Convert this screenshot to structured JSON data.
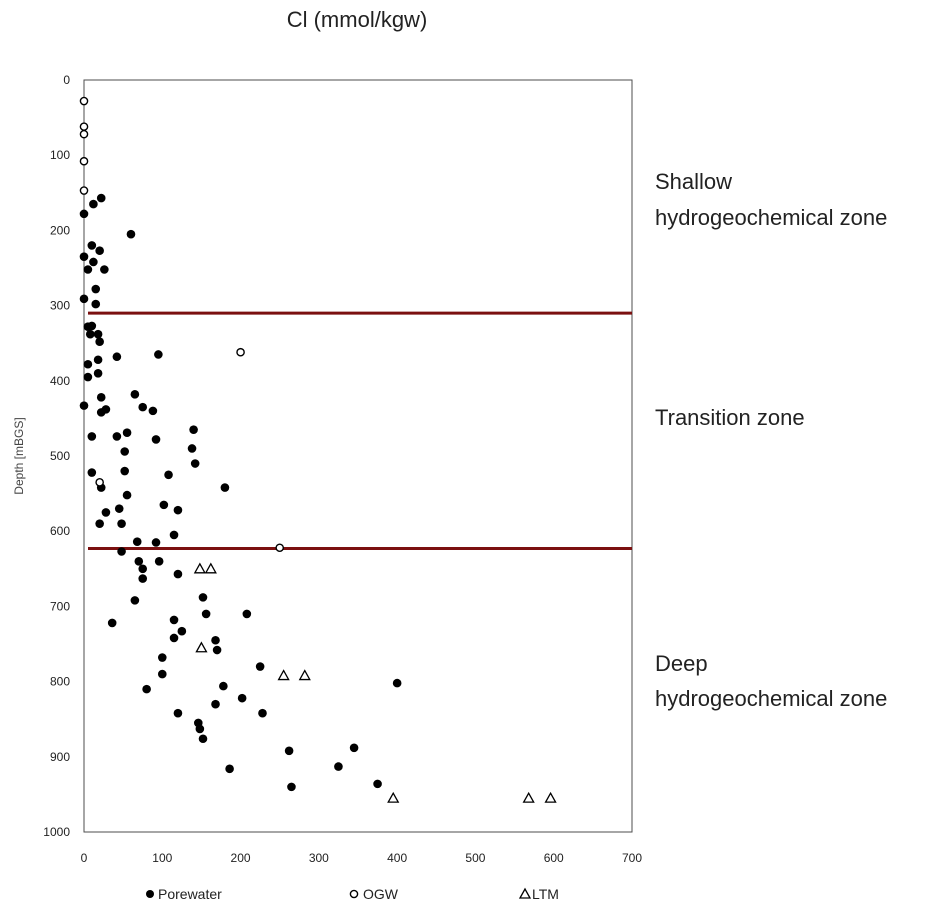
{
  "chart_data": {
    "type": "scatter",
    "title": "Cl (mmol/kgw)",
    "xlabel": "",
    "ylabel": "Depth [mBGS]",
    "xlim": [
      0,
      700
    ],
    "ylim": [
      0,
      1000
    ],
    "y_inverted": true,
    "x_ticks": [
      "0",
      "100",
      "200",
      "300",
      "400",
      "500",
      "600",
      "700"
    ],
    "y_ticks": [
      "0",
      "100",
      "200",
      "300",
      "400",
      "500",
      "600",
      "700",
      "800",
      "900",
      "1000"
    ],
    "grid": false,
    "legend_position": "bottom",
    "series": [
      {
        "name": "Porewater",
        "marker": "filled-circle",
        "color": "#000000",
        "points": [
          [
            0,
            178
          ],
          [
            12,
            165
          ],
          [
            22,
            157
          ],
          [
            60,
            205
          ],
          [
            10,
            220
          ],
          [
            20,
            227
          ],
          [
            0,
            235
          ],
          [
            12,
            242
          ],
          [
            5,
            252
          ],
          [
            26,
            252
          ],
          [
            15,
            278
          ],
          [
            0,
            291
          ],
          [
            15,
            298
          ],
          [
            5,
            328
          ],
          [
            10,
            327
          ],
          [
            18,
            338
          ],
          [
            8,
            338
          ],
          [
            20,
            348
          ],
          [
            42,
            368
          ],
          [
            95,
            365
          ],
          [
            18,
            372
          ],
          [
            5,
            378
          ],
          [
            18,
            390
          ],
          [
            5,
            395
          ],
          [
            65,
            418
          ],
          [
            22,
            422
          ],
          [
            75,
            435
          ],
          [
            0,
            433
          ],
          [
            28,
            438
          ],
          [
            22,
            442
          ],
          [
            88,
            440
          ],
          [
            140,
            465
          ],
          [
            10,
            474
          ],
          [
            42,
            474
          ],
          [
            55,
            469
          ],
          [
            92,
            478
          ],
          [
            138,
            490
          ],
          [
            52,
            494
          ],
          [
            142,
            510
          ],
          [
            52,
            520
          ],
          [
            10,
            522
          ],
          [
            108,
            525
          ],
          [
            180,
            542
          ],
          [
            22,
            542
          ],
          [
            55,
            552
          ],
          [
            102,
            565
          ],
          [
            120,
            572
          ],
          [
            45,
            570
          ],
          [
            28,
            575
          ],
          [
            20,
            590
          ],
          [
            48,
            590
          ],
          [
            115,
            605
          ],
          [
            68,
            614
          ],
          [
            92,
            615
          ],
          [
            48,
            627
          ],
          [
            96,
            640
          ],
          [
            70,
            640
          ],
          [
            75,
            650
          ],
          [
            120,
            657
          ],
          [
            75,
            663
          ],
          [
            152,
            688
          ],
          [
            65,
            692
          ],
          [
            156,
            710
          ],
          [
            208,
            710
          ],
          [
            115,
            718
          ],
          [
            36,
            722
          ],
          [
            125,
            733
          ],
          [
            168,
            745
          ],
          [
            115,
            742
          ],
          [
            170,
            758
          ],
          [
            100,
            768
          ],
          [
            225,
            780
          ],
          [
            100,
            790
          ],
          [
            400,
            802
          ],
          [
            178,
            806
          ],
          [
            80,
            810
          ],
          [
            202,
            822
          ],
          [
            168,
            830
          ],
          [
            120,
            842
          ],
          [
            228,
            842
          ],
          [
            146,
            855
          ],
          [
            148,
            863
          ],
          [
            152,
            876
          ],
          [
            262,
            892
          ],
          [
            345,
            888
          ],
          [
            325,
            913
          ],
          [
            186,
            916
          ],
          [
            375,
            936
          ],
          [
            265,
            940
          ]
        ]
      },
      {
        "name": "OGW",
        "marker": "open-circle",
        "color": "#000000",
        "points": [
          [
            0,
            28
          ],
          [
            0,
            62
          ],
          [
            0,
            72
          ],
          [
            0,
            108
          ],
          [
            0,
            147
          ],
          [
            200,
            362
          ],
          [
            20,
            535
          ],
          [
            250,
            622
          ]
        ]
      },
      {
        "name": "LTM",
        "marker": "open-triangle",
        "color": "#000000",
        "points": [
          [
            148,
            650
          ],
          [
            162,
            650
          ],
          [
            150,
            755
          ],
          [
            255,
            792
          ],
          [
            282,
            792
          ],
          [
            395,
            955
          ],
          [
            568,
            955
          ],
          [
            596,
            955
          ]
        ]
      }
    ],
    "reference_lines": [
      {
        "orientation": "horizontal",
        "value": 310,
        "color": "#7b1010"
      },
      {
        "orientation": "horizontal",
        "value": 623,
        "color": "#7b1010"
      }
    ],
    "annotations": [
      {
        "lines": [
          "Shallow",
          "hydrogeochemical zone"
        ]
      },
      {
        "lines": [
          "Transition zone"
        ]
      },
      {
        "lines": [
          "Deep",
          "hydrogeochemical zone"
        ]
      }
    ]
  }
}
